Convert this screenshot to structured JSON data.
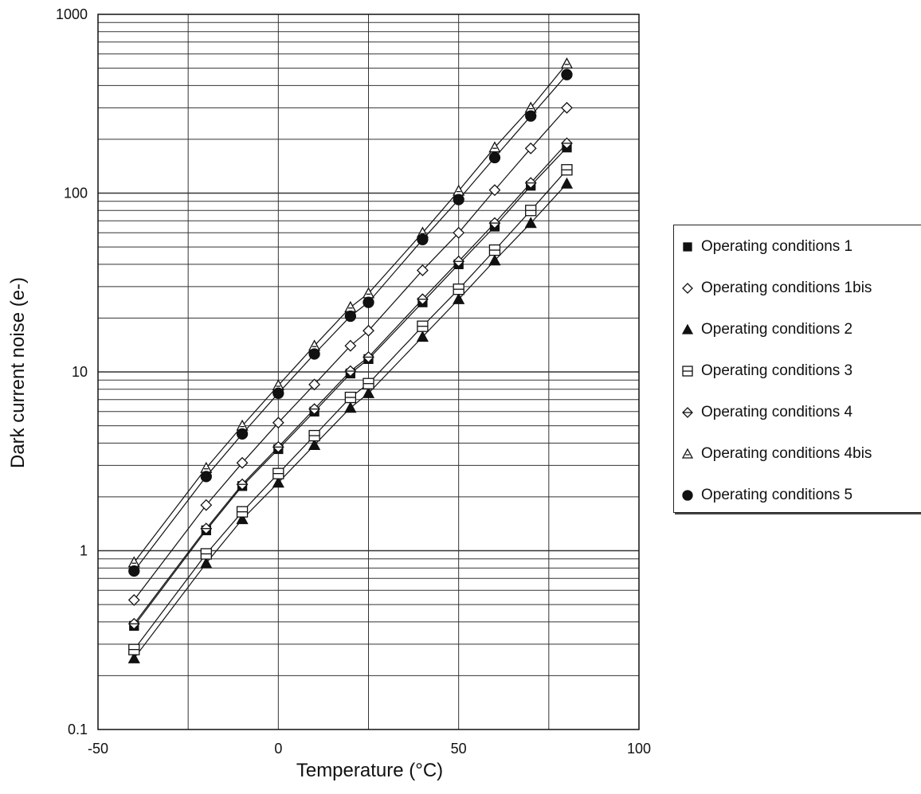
{
  "chart_data": {
    "type": "scatter",
    "title": "",
    "xlabel": "Temperature (°C)",
    "ylabel": "Dark current noise (e-)",
    "xlim": [
      -50,
      100
    ],
    "ylim": [
      0.1,
      1000
    ],
    "yscale": "log",
    "x_ticks": [
      "-50",
      "0",
      "50",
      "100"
    ],
    "y_ticks": [
      "0.1",
      "1",
      "10",
      "100",
      "1000"
    ],
    "grid": true,
    "legend_position": "right",
    "series": [
      {
        "name": "Operating conditions 1",
        "marker": "filled-square",
        "x": [
          -40,
          -20,
          -10,
          0,
          10,
          20,
          25,
          40,
          50,
          60,
          70,
          80
        ],
        "y": [
          0.38,
          1.3,
          2.3,
          3.7,
          6.0,
          9.8,
          11.8,
          24.5,
          40,
          65,
          110,
          180
        ]
      },
      {
        "name": "Operating conditions 1bis",
        "marker": "diamond",
        "x": [
          -40,
          -20,
          -10,
          0,
          10,
          20,
          25,
          40,
          50,
          60,
          70,
          80
        ],
        "y": [
          0.53,
          1.8,
          3.1,
          5.2,
          8.5,
          14,
          17,
          37,
          60,
          104,
          178,
          300
        ]
      },
      {
        "name": "Operating conditions 2",
        "marker": "filled-triangle",
        "x": [
          -40,
          -20,
          -10,
          0,
          10,
          20,
          25,
          40,
          50,
          60,
          70,
          80
        ],
        "y": [
          0.25,
          0.85,
          1.5,
          2.4,
          3.9,
          6.3,
          7.6,
          15.7,
          25.5,
          42,
          68,
          113
        ]
      },
      {
        "name": "Operating conditions 3",
        "marker": "split-square",
        "x": [
          -40,
          -20,
          -10,
          0,
          10,
          20,
          25,
          40,
          50,
          60,
          70,
          80
        ],
        "y": [
          0.28,
          0.96,
          1.65,
          2.7,
          4.4,
          7.2,
          8.6,
          18,
          29,
          48,
          80,
          135
        ]
      },
      {
        "name": "Operating conditions 4",
        "marker": "split-diamond",
        "x": [
          -40,
          -20,
          -10,
          0,
          10,
          20,
          25,
          40,
          50,
          60,
          70,
          80
        ],
        "y": [
          0.39,
          1.33,
          2.35,
          3.8,
          6.2,
          10.1,
          12.1,
          25.5,
          41.5,
          68,
          114,
          190
        ]
      },
      {
        "name": "Operating conditions 4bis",
        "marker": "split-triangle",
        "x": [
          -40,
          -20,
          -10,
          0,
          10,
          20,
          25,
          40,
          50,
          60,
          70,
          80
        ],
        "y": [
          0.86,
          2.9,
          5.0,
          8.4,
          14,
          23,
          27.5,
          60,
          103,
          180,
          300,
          530
        ]
      },
      {
        "name": "Operating conditions 5",
        "marker": "filled-circle",
        "x": [
          -40,
          -20,
          -10,
          0,
          10,
          20,
          25,
          40,
          50,
          60,
          70,
          80
        ],
        "y": [
          0.77,
          2.6,
          4.5,
          7.6,
          12.6,
          20.5,
          24.5,
          55,
          92,
          158,
          270,
          460
        ]
      }
    ]
  }
}
